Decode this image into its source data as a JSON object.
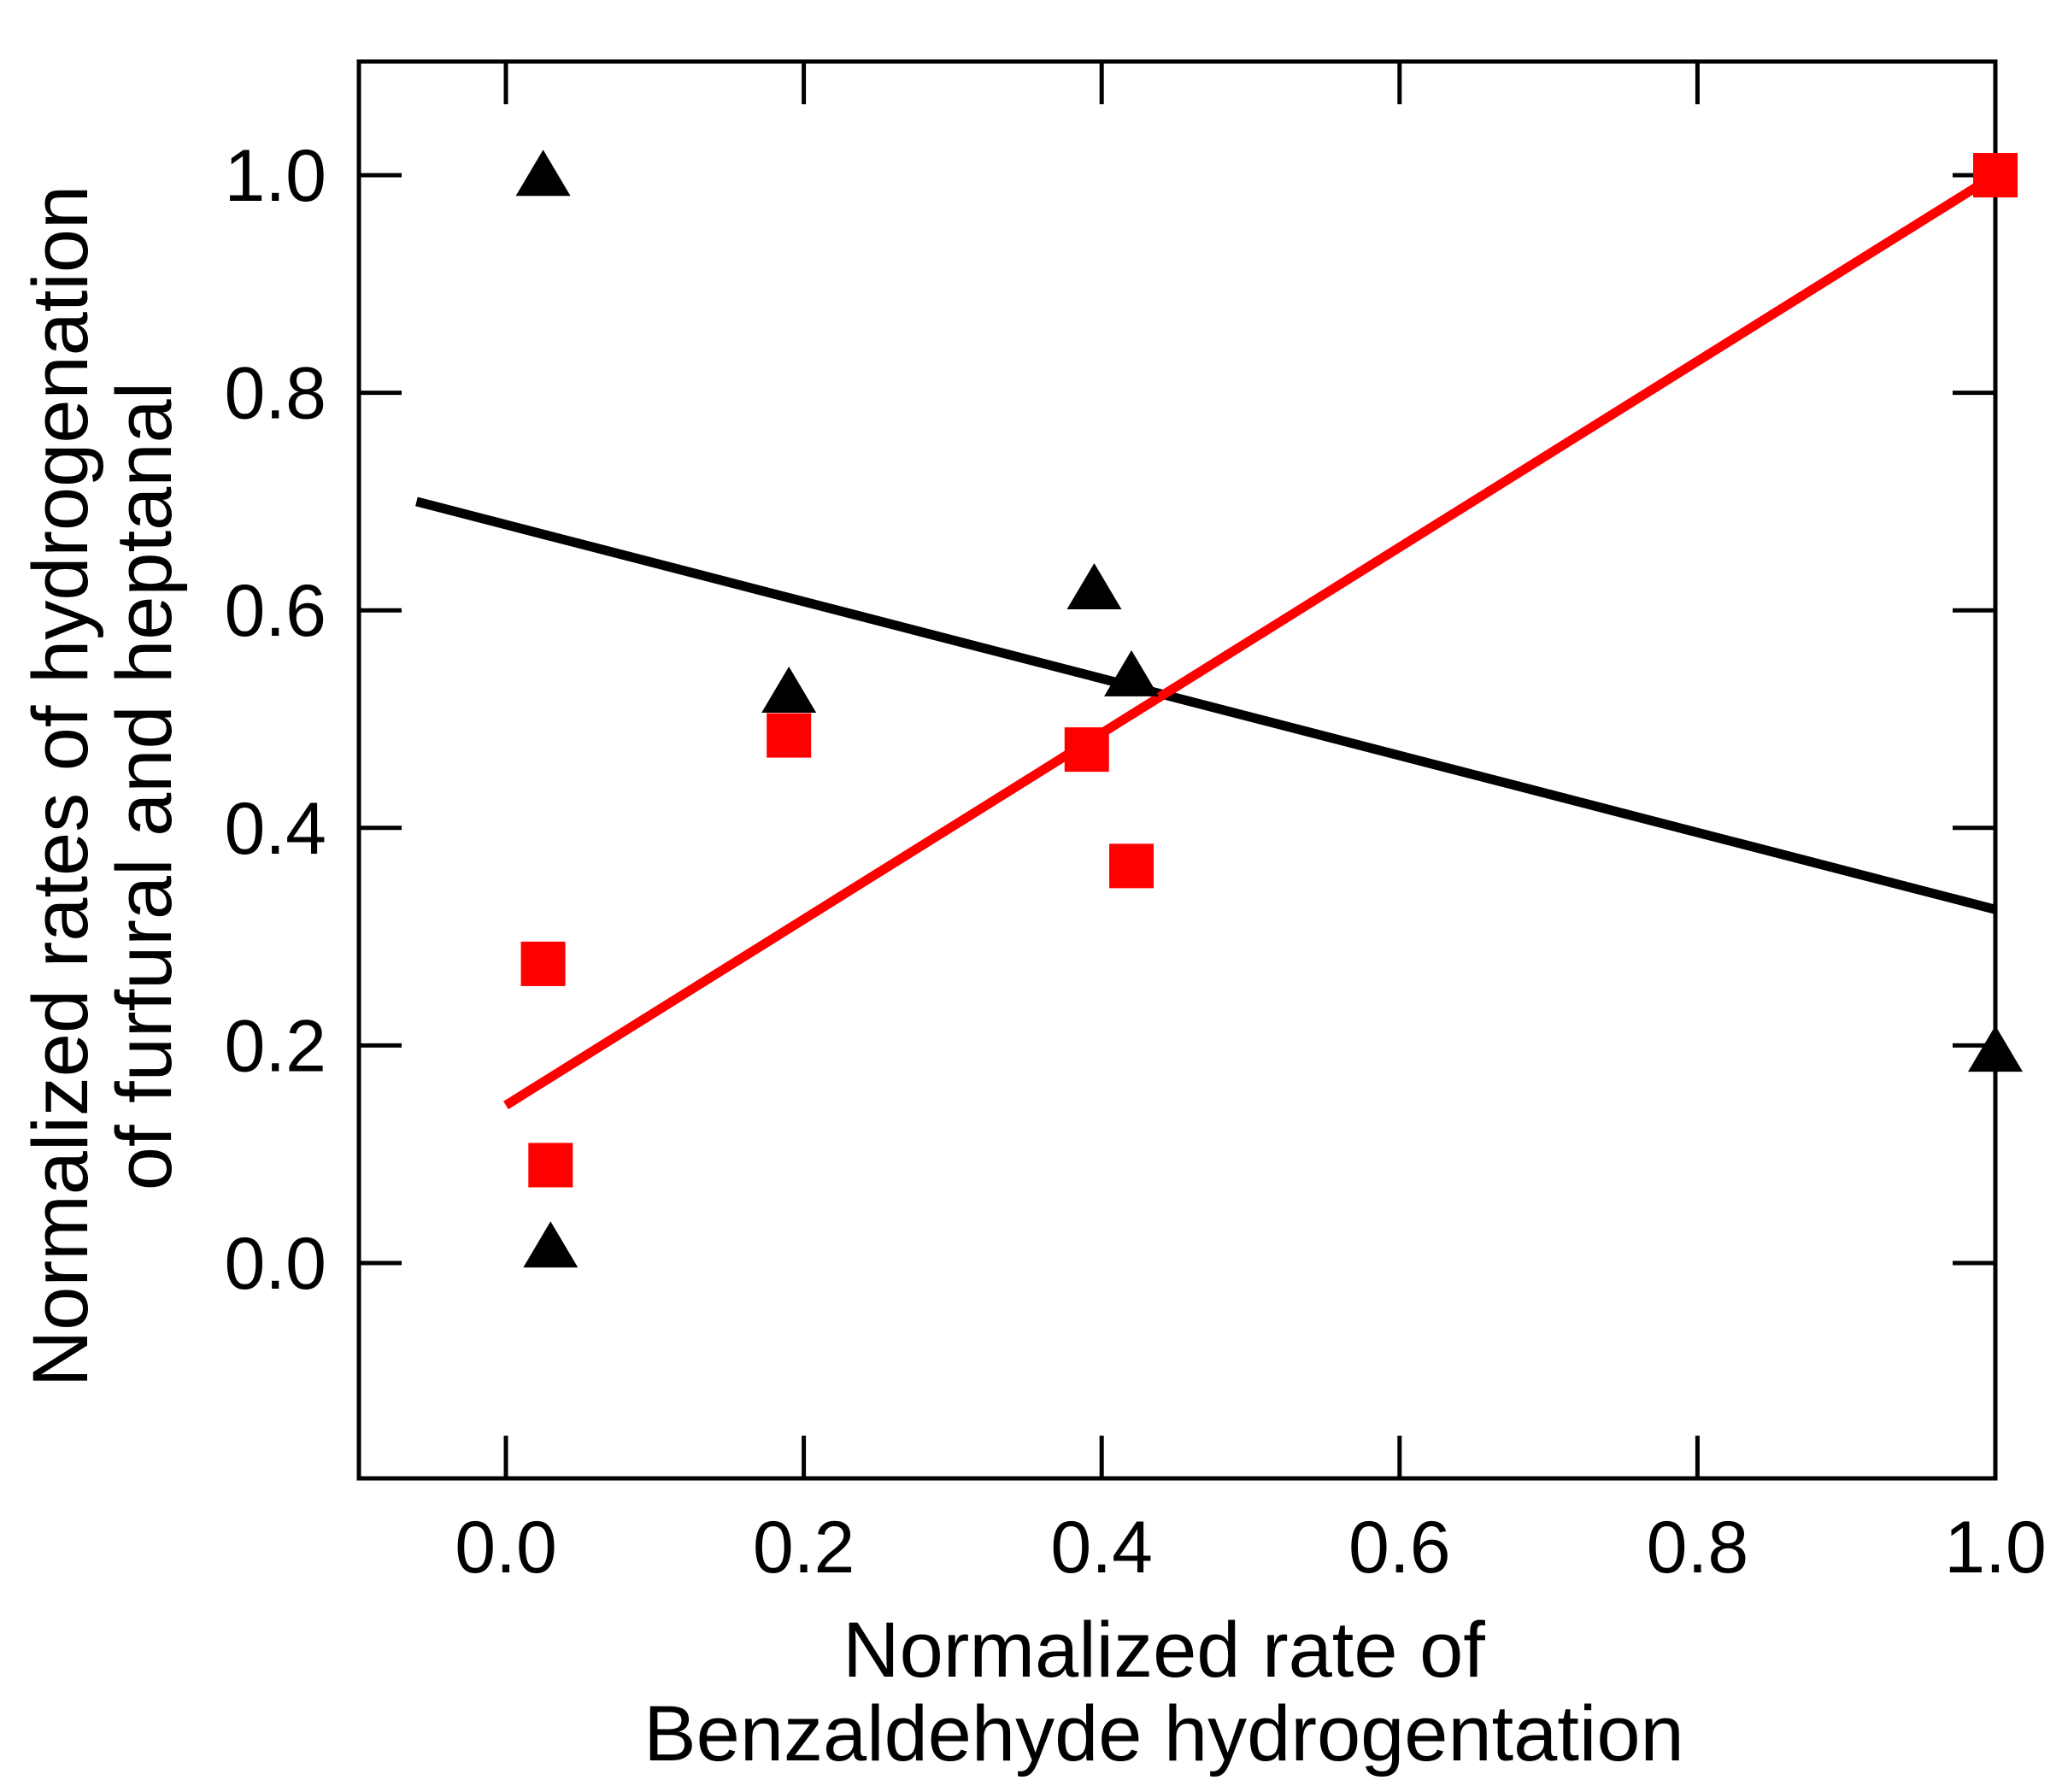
{
  "chart_data": {
    "type": "scatter",
    "title": "",
    "xlabel_lines": [
      "Normalized rate of",
      "Benzaldehyde hydrogentation"
    ],
    "ylabel_lines": [
      "Normalized rates of hydrogenation",
      "of furfural and heptanal"
    ],
    "xlim": [
      -0.1,
      1.0
    ],
    "ylim": [
      -0.2,
      1.1
    ],
    "xticks": [
      0.0,
      0.2,
      0.4,
      0.6,
      0.8,
      1.0
    ],
    "yticks": [
      0.0,
      0.2,
      0.4,
      0.6,
      0.8,
      1.0
    ],
    "xtick_labels": [
      "0.0",
      "0.2",
      "0.4",
      "0.6",
      "0.8",
      "1.0"
    ],
    "ytick_labels": [
      "0.0",
      "0.2",
      "0.4",
      "0.6",
      "0.8",
      "1.0"
    ],
    "grid": false,
    "series": [
      {
        "name": "triangles",
        "marker": "triangle",
        "color": "#000000",
        "points": [
          {
            "x": 0.025,
            "y": 1.0
          },
          {
            "x": 0.03,
            "y": 0.015
          },
          {
            "x": 0.19,
            "y": 0.525
          },
          {
            "x": 0.395,
            "y": 0.62
          },
          {
            "x": 0.42,
            "y": 0.54
          },
          {
            "x": 1.0,
            "y": 0.195
          }
        ],
        "fit": {
          "x": [
            -0.06,
            1.0
          ],
          "y": [
            0.7,
            0.325
          ]
        }
      },
      {
        "name": "squares",
        "marker": "square",
        "color": "#ff0000",
        "points": [
          {
            "x": 0.025,
            "y": 0.275
          },
          {
            "x": 0.03,
            "y": 0.09
          },
          {
            "x": 0.19,
            "y": 0.485
          },
          {
            "x": 0.39,
            "y": 0.472
          },
          {
            "x": 0.42,
            "y": 0.365
          },
          {
            "x": 1.0,
            "y": 1.0
          }
        ],
        "fit": {
          "x": [
            0.0,
            1.0
          ],
          "y": [
            0.145,
            1.0
          ]
        }
      }
    ]
  }
}
